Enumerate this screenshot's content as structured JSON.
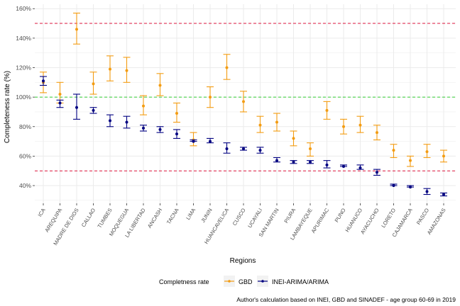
{
  "chart_data": {
    "type": "scatter",
    "xlabel": "Regions",
    "ylabel": "Completeness rate (%)",
    "categories": [
      "ICA",
      "AREQUIPA",
      "MADRE DE DIOS",
      "CALLAO",
      "TUMBES",
      "MOQUEGUA",
      "LA LIBERTAD",
      "ANCASH",
      "TACNA",
      "LIMA",
      "JUNIN",
      "HUANCAVELICA",
      "CUSCO",
      "UCAYALI",
      "SAN MARTIN",
      "PIURA",
      "LAMBAYEQUE",
      "APURIMAC",
      "PUNO",
      "HUANUCO",
      "AYACUCHO",
      "LORETO",
      "CAJAMARCA",
      "PASCO",
      "AMAZONAS"
    ],
    "y_ticks": [
      40,
      60,
      80,
      100,
      120,
      140,
      160
    ],
    "y_tick_labels": [
      "40%",
      "60%",
      "80%",
      "100%",
      "120%",
      "140%",
      "160%"
    ],
    "ylim": [
      28,
      163
    ],
    "reference_lines": [
      {
        "value": 150,
        "color": "#dc143c",
        "style": "dashed"
      },
      {
        "value": 100,
        "color": "#32cd32",
        "style": "dashed"
      },
      {
        "value": 50,
        "color": "#dc143c",
        "style": "dashed"
      }
    ],
    "legend_title": "Completness rate",
    "legend_position": "bottom",
    "series": [
      {
        "name": "GBD",
        "color": "#f39c12",
        "values": [
          110,
          102,
          146,
          109,
          119,
          118,
          94,
          108,
          89,
          71,
          100,
          120,
          97,
          81,
          83,
          72,
          65,
          91,
          80,
          81,
          76,
          64,
          57,
          63,
          60
        ],
        "lower": [
          103,
          96,
          136,
          102,
          111,
          110,
          88,
          101,
          83,
          67,
          93,
          112,
          90,
          76,
          77,
          67,
          60,
          85,
          75,
          76,
          71,
          59,
          53,
          59,
          56
        ],
        "upper": [
          117,
          110,
          157,
          117,
          128,
          127,
          101,
          116,
          96,
          76,
          107,
          129,
          104,
          87,
          89,
          77,
          69,
          97,
          85,
          87,
          81,
          68,
          60,
          68,
          64
        ]
      },
      {
        "name": "INEI-ARIMA/ARIMA",
        "color": "#000080",
        "values": [
          111,
          96,
          93,
          91,
          84,
          83,
          79,
          78,
          75,
          70,
          70,
          65,
          65,
          64,
          57,
          56,
          56,
          54,
          53,
          52,
          49,
          40,
          39,
          36,
          34
        ],
        "lower": [
          108,
          93,
          85,
          89,
          80,
          79,
          77,
          76,
          72,
          70,
          69,
          62,
          64,
          62,
          56,
          55,
          55,
          52,
          53,
          51,
          47,
          40,
          39,
          34,
          33
        ],
        "upper": [
          114,
          98,
          102,
          93,
          88,
          87,
          81,
          80,
          78,
          71,
          72,
          69,
          66,
          66,
          59,
          57,
          57,
          57,
          54,
          54,
          51,
          41,
          40,
          38,
          35
        ]
      }
    ],
    "caption": "Author's calculation based on INEI, GBD and SINADEF - age group 60-69 in 2019"
  }
}
